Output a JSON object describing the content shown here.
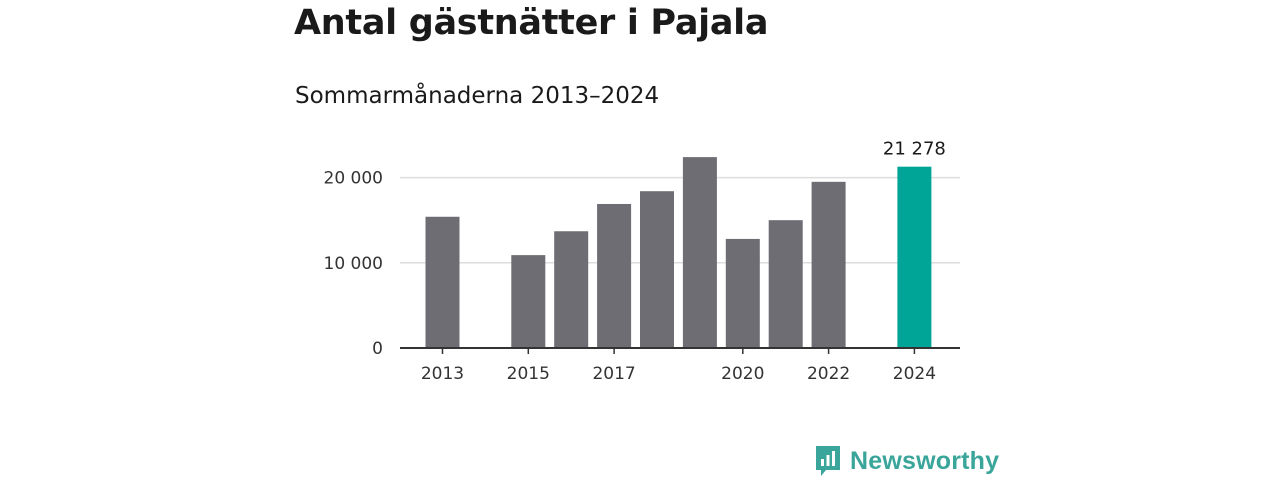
{
  "title": "Antal gästnätter i Pajala",
  "subtitle": "Sommarmånaderna 2013–2024",
  "brand": {
    "name": "Newsworthy",
    "icon": "bar-chart-speech-bubble-icon"
  },
  "colors": {
    "bar": "#6e6d73",
    "highlight": "#00a598",
    "grid": "#dddddd",
    "axis": "#333333",
    "brand": "#3aa59a"
  },
  "chart_data": {
    "type": "bar",
    "categories": [
      "2013",
      "2014",
      "2015",
      "2016",
      "2017",
      "2018",
      "2019",
      "2020",
      "2021",
      "2022",
      "2023",
      "2024"
    ],
    "values": [
      15400,
      null,
      10900,
      13700,
      16900,
      18400,
      22400,
      12800,
      15000,
      19500,
      null,
      21278
    ],
    "highlight_index": 11,
    "xtick_labels": [
      "2013",
      "",
      "2015",
      "",
      "2017",
      "",
      "",
      "2020",
      "",
      "2022",
      "",
      "2024"
    ],
    "yticks": [
      0,
      10000,
      20000
    ],
    "ytick_labels": [
      "0",
      "10 000",
      "20 000"
    ],
    "ylim": [
      0,
      23000
    ],
    "data_labels": [
      {
        "index": 11,
        "text": "21 278"
      }
    ],
    "grid": true,
    "xlabel": "",
    "ylabel": ""
  }
}
